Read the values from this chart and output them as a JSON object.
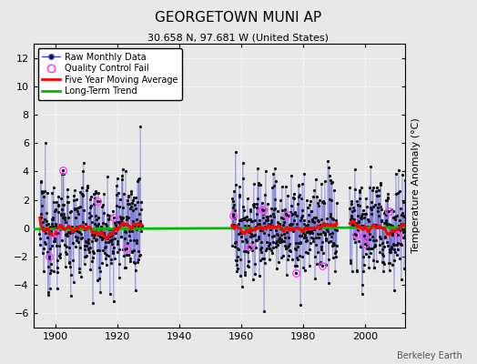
{
  "title": "GEORGETOWN MUNI AP",
  "subtitle": "30.658 N, 97.681 W (United States)",
  "ylabel": "Temperature Anomaly (°C)",
  "credit": "Berkeley Earth",
  "xlim": [
    1893,
    2013
  ],
  "ylim": [
    -7,
    13
  ],
  "yticks": [
    -6,
    -4,
    -2,
    0,
    2,
    4,
    6,
    8,
    10,
    12
  ],
  "xticks": [
    1900,
    1920,
    1940,
    1960,
    1980,
    2000
  ],
  "bg_color": "#e8e8e8",
  "raw_line_color": "#4444cc",
  "raw_dot_color": "#111111",
  "qc_fail_color": "#ff44ff",
  "moving_avg_color": "#ff0000",
  "trend_color": "#00bb00",
  "seed": 12345,
  "segment1_start": 1895,
  "segment1_end": 1927,
  "segment2_start": 1957,
  "segment2_end": 1990,
  "segment3_start": 1995,
  "segment3_end": 2013,
  "legend_labels": [
    "Raw Monthly Data",
    "Quality Control Fail",
    "Five Year Moving Average",
    "Long-Term Trend"
  ]
}
